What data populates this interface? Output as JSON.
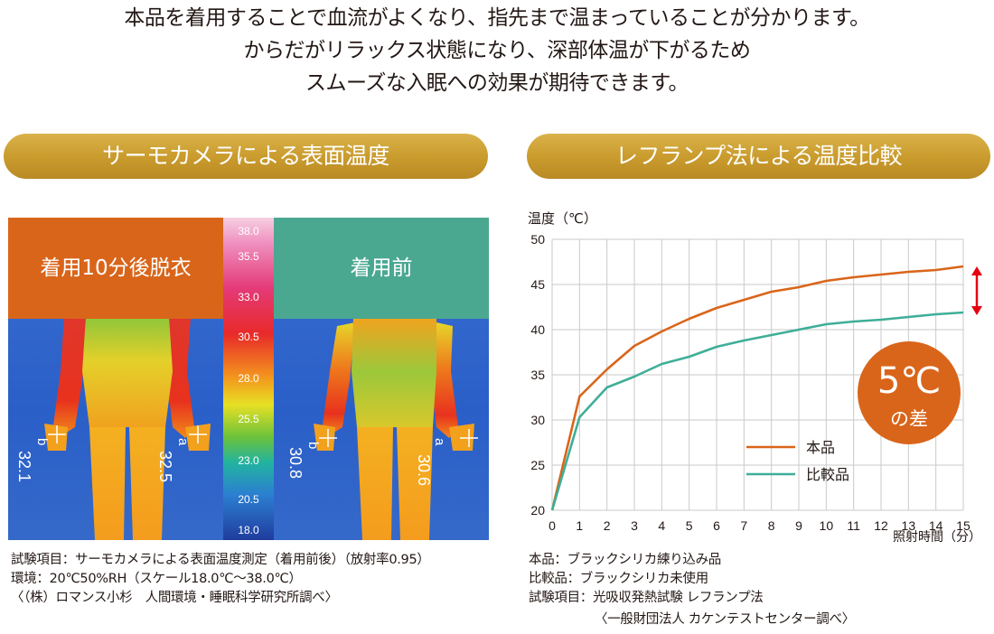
{
  "intro": {
    "line1": "本品を着用することで血流がよくなり、指先まで温まっていることが分かります。",
    "line2": "からだがリラックス状態になり、深部体温が下がるため",
    "line3": "スムーズな入眠への効果が期待できます。"
  },
  "headers": {
    "left": "サーモカメラによる表面温度",
    "right": "レフランプ法による温度比較"
  },
  "thermal": {
    "after_label": "着用10分後脱衣",
    "before_label": "着用前",
    "after_colors": {
      "label_bg": "#d9651a"
    },
    "before_colors": {
      "label_bg": "#4aa891"
    },
    "scale": [
      "38.0",
      "35.5",
      "33.0",
      "30.5",
      "28.0",
      "25.5",
      "23.0",
      "20.5",
      "18.0"
    ],
    "after_points": {
      "a_label": "a",
      "b_label": "b",
      "a_value": "32.5",
      "b_value": "32.1"
    },
    "before_points": {
      "a_label": "a",
      "b_label": "b",
      "a_value": "30.6",
      "b_value": "30.8"
    }
  },
  "notes_left": {
    "line1": "試験項目：サーモカメラによる表面温度測定（着用前後）（放射率0.95）",
    "line2": "環境：20℃50%RH（スケール18.0℃〜38.0℃）",
    "line3": "〈（株）ロマンス小杉　人間環境・睡眠科学研究所調べ〉"
  },
  "notes_right": {
    "line1": "本品：ブラックシリカ練り込み品",
    "line2": "比較品：ブラックシリカ未使用",
    "line3": "試験項目：光吸収発熱試験 レフランプ法",
    "line4": "〈一般財団法人 カケンテストセンター調べ〉"
  },
  "badge": {
    "big": "5℃",
    "small": "の差",
    "color": "#d9651a"
  },
  "chart_data": {
    "type": "line",
    "ylabel": "温度（℃）",
    "xlabel": "照射時間（分）",
    "xlim": [
      0,
      15
    ],
    "ylim": [
      20,
      50
    ],
    "xticks": [
      "0",
      "1",
      "2",
      "3",
      "4",
      "5",
      "6",
      "7",
      "8",
      "9",
      "10",
      "11",
      "12",
      "13",
      "14",
      "15"
    ],
    "yticks": [
      "20",
      "25",
      "30",
      "35",
      "40",
      "45",
      "50"
    ],
    "grid": true,
    "legend_position": "bottom-right",
    "series": [
      {
        "name": "本品",
        "color": "#d9651a",
        "x": [
          0,
          1,
          2,
          3,
          4,
          5,
          6,
          7,
          8,
          9,
          10,
          11,
          12,
          13,
          14,
          15
        ],
        "values": [
          20,
          32.6,
          35.6,
          38.2,
          39.8,
          41.2,
          42.4,
          43.3,
          44.2,
          44.7,
          45.4,
          45.8,
          46.1,
          46.4,
          46.6,
          47.0
        ]
      },
      {
        "name": "比較品",
        "color": "#3fae98",
        "x": [
          0,
          1,
          2,
          3,
          4,
          5,
          6,
          7,
          8,
          9,
          10,
          11,
          12,
          13,
          14,
          15
        ],
        "values": [
          20,
          30.3,
          33.6,
          34.8,
          36.2,
          37.0,
          38.1,
          38.8,
          39.4,
          40.0,
          40.6,
          40.9,
          41.1,
          41.4,
          41.7,
          41.9
        ]
      }
    ]
  }
}
